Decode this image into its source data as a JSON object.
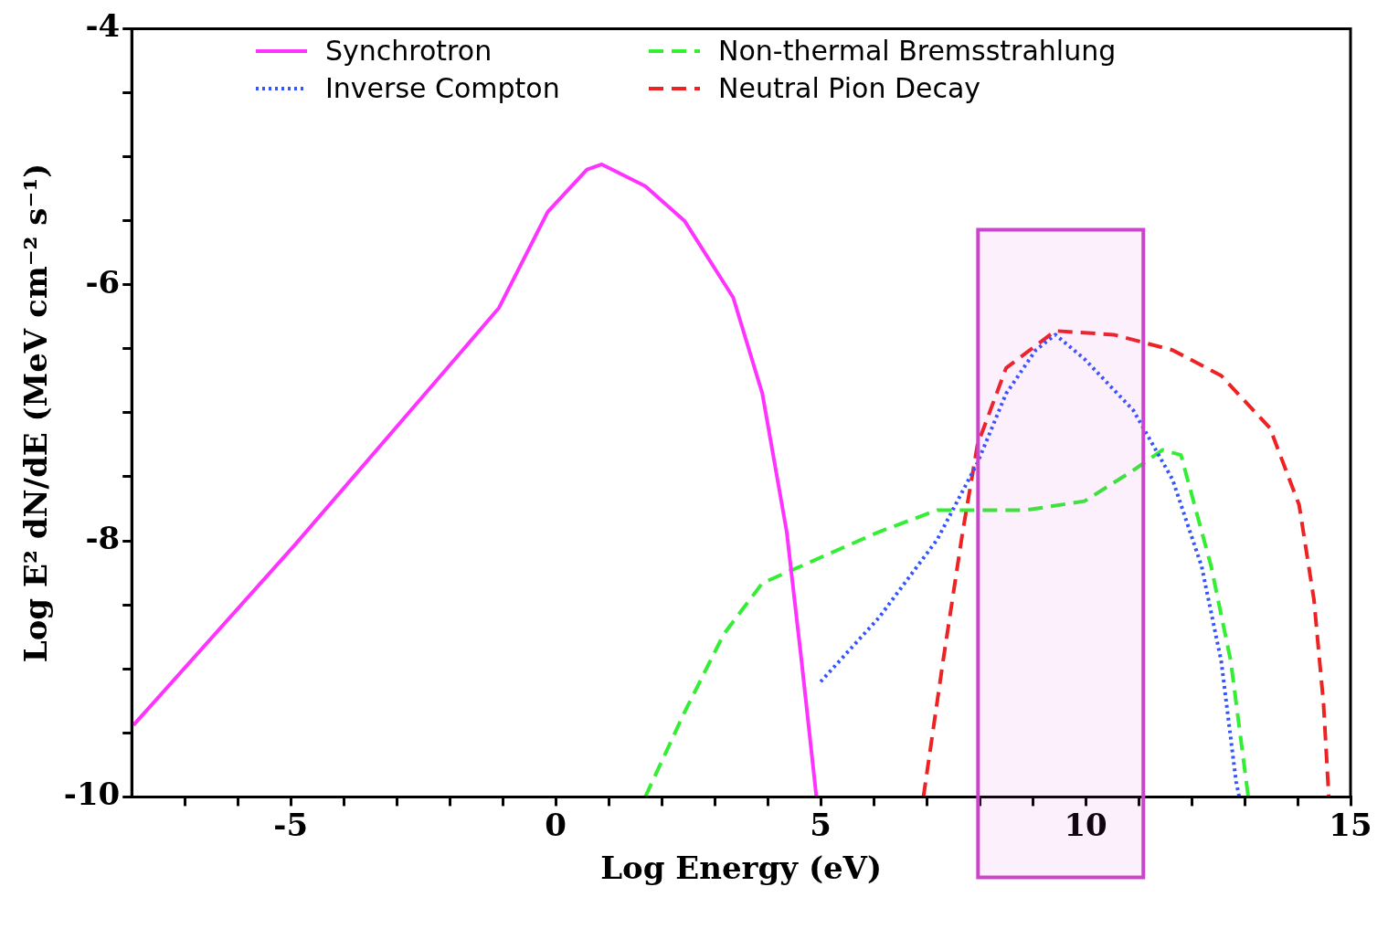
{
  "chart_data": {
    "type": "line",
    "xlabel": "Log Energy (eV)",
    "ylabel": "Log E² dN/dE (MeV cm⁻² s⁻¹)",
    "xlim": [
      -8,
      15
    ],
    "ylim": [
      -10,
      -4
    ],
    "xticks": [
      {
        "value": -7,
        "label": null
      },
      {
        "value": -6,
        "label": null
      },
      -5,
      {
        "value": -4,
        "label": null
      },
      {
        "value": -3,
        "label": null
      },
      {
        "value": -2,
        "label": null
      },
      {
        "value": -1,
        "label": null
      },
      0,
      {
        "value": 1,
        "label": null
      },
      {
        "value": 2,
        "label": null
      },
      {
        "value": 3,
        "label": null
      },
      {
        "value": 4,
        "label": null
      },
      5,
      {
        "value": 6,
        "label": null
      },
      {
        "value": 7,
        "label": null
      },
      {
        "value": 8,
        "label": null
      },
      {
        "value": 9,
        "label": null
      },
      10,
      {
        "value": 11,
        "label": null
      },
      {
        "value": 12,
        "label": null
      },
      {
        "value": 13,
        "label": null
      },
      {
        "value": 14,
        "label": null
      },
      15
    ],
    "yticks": [
      -10,
      {
        "value": -9.5,
        "label": null
      },
      {
        "value": -9,
        "label": null
      },
      {
        "value": -8.5,
        "label": null
      },
      -8,
      {
        "value": -7.5,
        "label": null
      },
      {
        "value": -7,
        "label": null
      },
      {
        "value": -6.5,
        "label": null
      },
      -6,
      {
        "value": -5.5,
        "label": null
      },
      {
        "value": -5,
        "label": null
      },
      {
        "value": -4.5,
        "label": null
      },
      -4
    ],
    "grid": false,
    "legend": "top left",
    "marker": "none",
    "bands": [
      {
        "axis": "x",
        "from": 7.97,
        "to": 11.09,
        "color": "#cc44cc"
      }
    ],
    "series": [
      {
        "name": "Synchrotron",
        "color": "#ff33ff",
        "line_style": "solid",
        "x": [
          -7.97,
          -4.94,
          -2.17,
          -1.07,
          -0.15,
          0.59,
          0.87,
          1.69,
          2.43,
          3.35,
          3.9,
          4.36,
          4.64,
          4.92
        ],
        "values": [
          -9.44,
          -8.04,
          -6.71,
          -6.18,
          -5.43,
          -5.1,
          -5.06,
          -5.23,
          -5.5,
          -6.1,
          -6.85,
          -7.93,
          -8.94,
          -10
        ]
      },
      {
        "name": "Inverse Compton",
        "color": "#3355ff",
        "line_style": "dotted",
        "x": [
          5.0,
          6.1,
          7.2,
          7.96,
          8.5,
          9.06,
          9.43,
          9.98,
          10.9,
          11.64,
          12.19,
          12.56,
          12.84,
          12.9
        ],
        "values": [
          -9.1,
          -8.6,
          -7.99,
          -7.39,
          -6.85,
          -6.51,
          -6.39,
          -6.58,
          -6.98,
          -7.52,
          -8.2,
          -8.94,
          -9.88,
          -10
        ]
      },
      {
        "name": "Non-thermal Bremsstrahlung",
        "color": "#33ee33",
        "line_style": "dashed",
        "x": [
          1.69,
          2.43,
          3.17,
          3.9,
          5.0,
          6.1,
          7.2,
          8.88,
          9.98,
          10.9,
          11.45,
          11.8,
          12.37,
          12.74,
          13.07
        ],
        "values": [
          -10,
          -9.34,
          -8.73,
          -8.33,
          -8.13,
          -7.93,
          -7.76,
          -7.76,
          -7.69,
          -7.45,
          -7.29,
          -7.33,
          -8.2,
          -8.94,
          -10
        ]
      },
      {
        "name": "Neutral Pion Decay",
        "color": "#ee2222",
        "line_style": "dashed",
        "x": [
          6.94,
          7.31,
          7.68,
          7.96,
          8.5,
          9.43,
          10.53,
          11.64,
          12.56,
          13.48,
          14.03,
          14.31,
          14.49,
          14.59
        ],
        "values": [
          -10,
          -8.94,
          -7.93,
          -7.25,
          -6.65,
          -6.36,
          -6.39,
          -6.51,
          -6.71,
          -7.12,
          -7.72,
          -8.46,
          -9.27,
          -10
        ]
      }
    ]
  }
}
